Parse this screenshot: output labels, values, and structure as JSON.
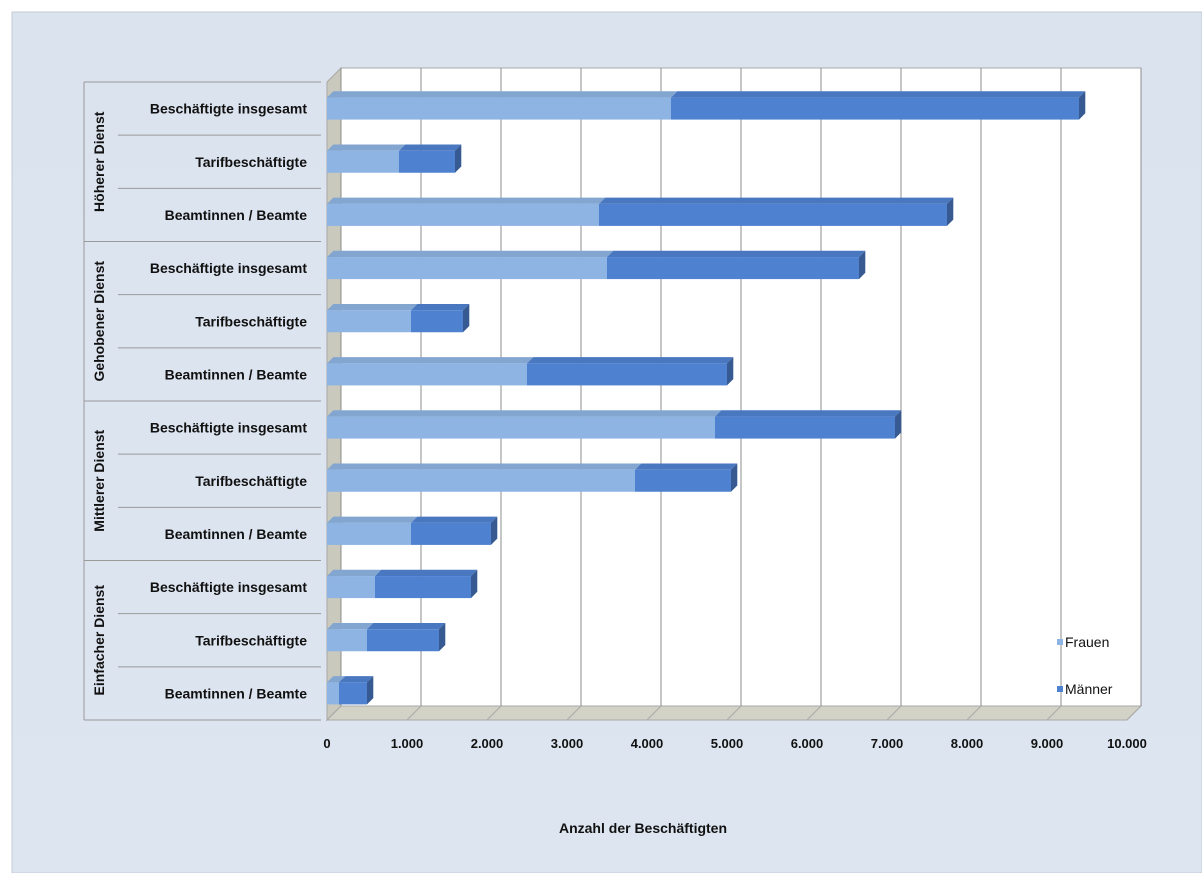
{
  "chart_data": {
    "type": "bar",
    "orientation": "horizontal",
    "stacked": true,
    "three_d": true,
    "title": "",
    "xlabel": "Anzahl der Beschäftigten",
    "ylabel": "",
    "xlim": [
      0,
      10000
    ],
    "x_ticks": [
      0,
      1000,
      2000,
      3000,
      4000,
      5000,
      6000,
      7000,
      8000,
      9000,
      10000
    ],
    "x_tick_labels": [
      "0",
      "1.000",
      "2.000",
      "3.000",
      "4.000",
      "5.000",
      "6.000",
      "7.000",
      "8.000",
      "9.000",
      "10.000"
    ],
    "grid": true,
    "legend_position": "bottom-right",
    "groups": [
      {
        "label": "Höherer Dienst",
        "categories": [
          "Beschäftigte insgesamt",
          "Tarifbeschäftigte",
          "Beamtinnen / Beamte"
        ]
      },
      {
        "label": "Gehobener Dienst",
        "categories": [
          "Beschäftigte insgesamt",
          "Tarifbeschäftigte",
          "Beamtinnen / Beamte"
        ]
      },
      {
        "label": "Mittlerer Dienst",
        "categories": [
          "Beschäftigte insgesamt",
          "Tarifbeschäftigte",
          "Beamtinnen / Beamte"
        ]
      },
      {
        "label": "Einfacher Dienst",
        "categories": [
          "Beschäftigte insgesamt",
          "Tarifbeschäftigte",
          "Beamtinnen / Beamte"
        ]
      }
    ],
    "series": [
      {
        "name": "Frauen",
        "color": "#8EB4E3",
        "values": [
          4300,
          900,
          3400,
          3500,
          1050,
          2500,
          4850,
          3850,
          1050,
          600,
          500,
          150
        ]
      },
      {
        "name": "Männer",
        "color": "#4F81D1",
        "values": [
          5100,
          700,
          4350,
          3150,
          650,
          2500,
          2250,
          1200,
          1000,
          1200,
          900,
          350
        ]
      }
    ]
  }
}
